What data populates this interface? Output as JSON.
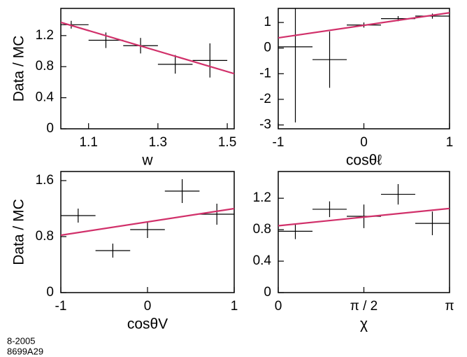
{
  "chart_data": [
    {
      "type": "errorbar",
      "xlabel": "w",
      "ylabel": "Data / MC",
      "color": "#000000",
      "x": [
        1.05,
        1.15,
        1.25,
        1.35,
        1.45
      ],
      "xerr": [
        0.05,
        0.05,
        0.05,
        0.05,
        0.05
      ],
      "values": [
        1.34,
        1.14,
        1.07,
        0.83,
        0.88
      ],
      "yerr": [
        0.05,
        0.1,
        0.1,
        0.12,
        0.22
      ],
      "fit": {
        "x": [
          1.02,
          1.52
        ],
        "y": [
          1.37,
          0.71
        ],
        "color": "#d1306a"
      },
      "xlim": [
        1.02,
        1.52
      ],
      "ylim": [
        0,
        1.55
      ],
      "xticks": [
        1.1,
        1.3,
        1.5
      ],
      "yticks": [
        0,
        0.4,
        0.8,
        1.2
      ]
    },
    {
      "type": "errorbar",
      "xlabel": "cosθℓ",
      "color": "#000000",
      "x": [
        -0.8,
        -0.4,
        0,
        0.4,
        0.8
      ],
      "xerr": [
        0.2,
        0.2,
        0.2,
        0.2,
        0.2
      ],
      "values": [
        0.05,
        -0.45,
        0.9,
        1.15,
        1.25
      ],
      "yerr": [
        2.95,
        1.1,
        0.1,
        0.1,
        0.1
      ],
      "fit": {
        "x": [
          -1,
          1
        ],
        "y": [
          0.4,
          1.38
        ],
        "color": "#d1306a"
      },
      "xlim": [
        -1,
        1
      ],
      "ylim": [
        -3.15,
        1.55
      ],
      "xticks": [
        -1,
        0,
        1
      ],
      "yticks": [
        -3,
        -2,
        -1,
        0,
        1
      ]
    },
    {
      "type": "errorbar",
      "xlabel": "cosθV",
      "ylabel": "Data / MC",
      "color": "#000000",
      "x": [
        -0.8,
        -0.4,
        0,
        0.4,
        0.8
      ],
      "xerr": [
        0.2,
        0.2,
        0.2,
        0.2,
        0.2
      ],
      "values": [
        1.1,
        0.6,
        0.9,
        1.45,
        1.12
      ],
      "yerr": [
        0.1,
        0.1,
        0.12,
        0.17,
        0.15
      ],
      "fit": {
        "x": [
          -1,
          1
        ],
        "y": [
          0.82,
          1.2
        ],
        "color": "#d1306a"
      },
      "xlim": [
        -1,
        1
      ],
      "ylim": [
        0,
        1.73
      ],
      "xticks": [
        -1,
        0,
        1
      ],
      "yticks": [
        0,
        0.8,
        1.6
      ]
    },
    {
      "type": "errorbar",
      "xlabel": "χ",
      "color": "#000000",
      "x": [
        0.314,
        0.942,
        1.571,
        2.199,
        2.827
      ],
      "xerr": [
        0.314,
        0.314,
        0.314,
        0.314,
        0.314
      ],
      "values": [
        0.78,
        1.06,
        0.97,
        1.25,
        0.88
      ],
      "yerr": [
        0.1,
        0.1,
        0.15,
        0.13,
        0.15
      ],
      "fit": {
        "x": [
          0,
          3.1416
        ],
        "y": [
          0.85,
          1.07
        ],
        "color": "#d1306a"
      },
      "xlim": [
        0,
        3.1416
      ],
      "ylim": [
        0,
        1.54
      ],
      "xticks": [
        0,
        {
          "value": 1.5708,
          "label": "π / 2"
        },
        {
          "value": 3.1416,
          "label": "π"
        }
      ],
      "yticks": [
        0,
        0.4,
        0.8,
        1.2
      ]
    }
  ],
  "notes": [
    "8-2005",
    "8699A29"
  ]
}
